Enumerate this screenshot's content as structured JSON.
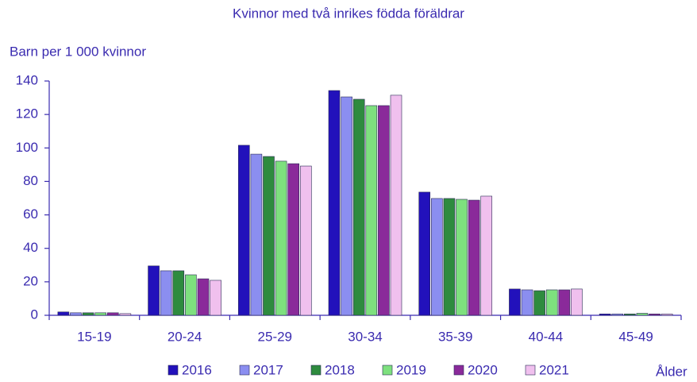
{
  "chart_data": {
    "type": "bar",
    "title": "Kvinnor med två inrikes födda föräldrar",
    "y_label": "Barn per 1 000 kvinnor",
    "x_label": "Ålder",
    "categories": [
      "15-19",
      "20-24",
      "25-29",
      "30-34",
      "35-39",
      "40-44",
      "45-49"
    ],
    "series": [
      {
        "name": "2016",
        "color": "#2211bb",
        "values": [
          2,
          29.5,
          101.6,
          134.3,
          73.6,
          15.7,
          0.8
        ]
      },
      {
        "name": "2017",
        "color": "#8b8ef0",
        "values": [
          1.5,
          26.6,
          96.3,
          130.5,
          69.8,
          15.2,
          0.8
        ]
      },
      {
        "name": "2018",
        "color": "#2e8b3e",
        "values": [
          1.5,
          26.6,
          94.9,
          129.1,
          69.8,
          14.7,
          0.8
        ]
      },
      {
        "name": "2019",
        "color": "#7ee07e",
        "values": [
          1.5,
          24.2,
          92.1,
          125.3,
          69.3,
          15.2,
          1.2
        ]
      },
      {
        "name": "2020",
        "color": "#8a2a9a",
        "values": [
          1.5,
          21.8,
          90.6,
          125.3,
          68.8,
          15.2,
          0.8
        ]
      },
      {
        "name": "2021",
        "color": "#f0c0ee",
        "values": [
          1,
          20.9,
          89.2,
          131.5,
          71.2,
          15.7,
          0.8
        ]
      }
    ],
    "ylim": [
      0,
      140
    ],
    "yticks": [
      0,
      20,
      40,
      60,
      80,
      100,
      120,
      140
    ],
    "grid": false
  }
}
